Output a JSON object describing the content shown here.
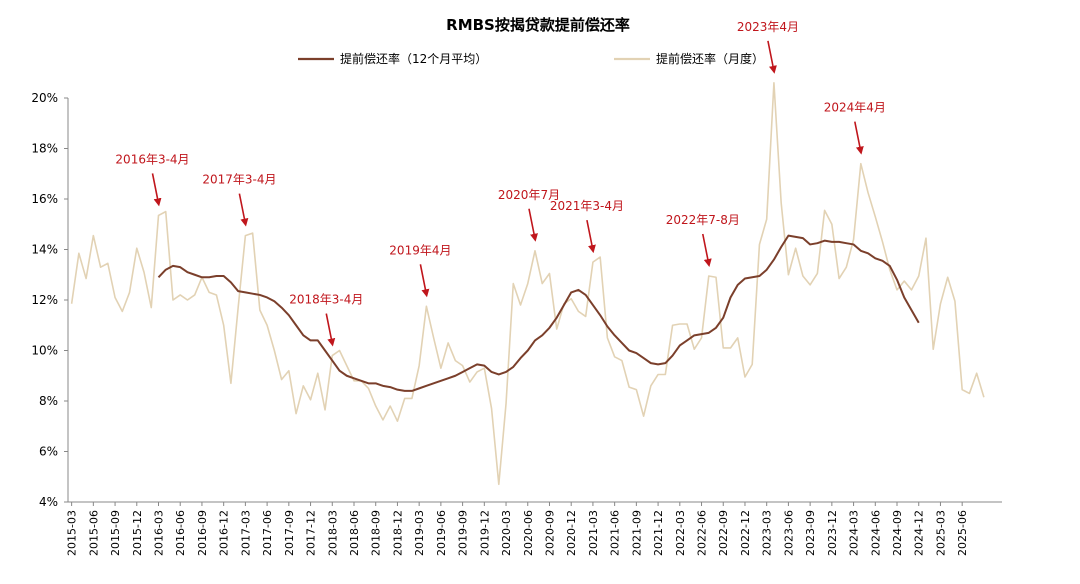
{
  "chart_data": {
    "type": "line",
    "title": "RMBS按揭贷款提前偿还率",
    "xlabel": "",
    "ylabel": "",
    "ylim": [
      4,
      20
    ],
    "yticks": [
      4,
      6,
      8,
      10,
      12,
      14,
      16,
      18,
      20
    ],
    "ytick_labels": [
      "4%",
      "6%",
      "8%",
      "10%",
      "12%",
      "14%",
      "16%",
      "18%",
      "20%"
    ],
    "legend_position": "top",
    "grid": false,
    "x_start": "2015-03",
    "x_months": 129,
    "xtick_labels": [
      "2015-03",
      "2015-06",
      "2015-09",
      "2015-12",
      "2016-03",
      "2016-06",
      "2016-09",
      "2016-12",
      "2017-03",
      "2017-06",
      "2017-09",
      "2017-12",
      "2018-03",
      "2018-06",
      "2018-09",
      "2018-12",
      "2019-03",
      "2019-06",
      "2019-09",
      "2019-12",
      "2020-03",
      "2020-06",
      "2020-09",
      "2020-12",
      "2021-03",
      "2021-06",
      "2021-09",
      "2021-12",
      "2022-03",
      "2022-06",
      "2022-09",
      "2022-12",
      "2023-03",
      "2023-06",
      "2023-09",
      "2023-12",
      "2024-03",
      "2024-06",
      "2024-09",
      "2024-12",
      "2025-03",
      "2025-06"
    ],
    "series": [
      {
        "name": "提前偿还率（12个月平均）",
        "color": "#7b3f2b",
        "start_month_index": 12,
        "values": [
          12.9,
          13.2,
          13.35,
          13.3,
          13.1,
          13.0,
          12.9,
          12.9,
          12.95,
          12.95,
          12.7,
          12.35,
          12.3,
          12.25,
          12.2,
          12.1,
          11.95,
          11.7,
          11.4,
          11.0,
          10.6,
          10.4,
          10.4,
          10.0,
          9.6,
          9.2,
          9.0,
          8.9,
          8.8,
          8.7,
          8.7,
          8.6,
          8.55,
          8.45,
          8.4,
          8.4,
          8.5,
          8.6,
          8.7,
          8.8,
          8.9,
          9.0,
          9.15,
          9.3,
          9.45,
          9.4,
          9.15,
          9.05,
          9.15,
          9.35,
          9.7,
          10.0,
          10.4,
          10.6,
          10.9,
          11.3,
          11.8,
          12.3,
          12.4,
          12.2,
          11.8,
          11.4,
          10.95,
          10.6,
          10.3,
          10.0,
          9.9,
          9.7,
          9.5,
          9.45,
          9.5,
          9.8,
          10.2,
          10.4,
          10.6,
          10.65,
          10.7,
          10.9,
          11.3,
          12.1,
          12.6,
          12.85,
          12.9,
          12.95,
          13.2,
          13.6,
          14.1,
          14.55,
          14.5,
          14.45,
          14.2,
          14.25,
          14.35,
          14.3,
          14.3,
          14.25,
          14.2,
          13.95,
          13.85,
          13.65,
          13.55,
          13.35,
          12.8,
          12.1,
          11.6,
          11.1
        ]
      },
      {
        "name": "提前偿还率（月度）",
        "color": "#e2d2b4",
        "start_month_index": 0,
        "values": [
          11.85,
          13.85,
          12.85,
          14.55,
          13.3,
          13.45,
          12.1,
          11.55,
          12.3,
          14.05,
          13.1,
          11.7,
          15.35,
          15.5,
          12.0,
          12.2,
          12.0,
          12.2,
          12.9,
          12.3,
          12.2,
          11.0,
          8.7,
          11.7,
          14.55,
          14.65,
          11.6,
          11.0,
          10.0,
          8.85,
          9.2,
          7.5,
          8.6,
          8.05,
          9.1,
          7.65,
          9.8,
          10.0,
          9.4,
          8.8,
          8.8,
          8.5,
          7.8,
          7.25,
          7.8,
          7.2,
          8.1,
          8.1,
          9.4,
          11.75,
          10.5,
          9.3,
          10.3,
          9.6,
          9.4,
          8.75,
          9.15,
          9.3,
          7.7,
          4.7,
          7.9,
          12.65,
          11.8,
          12.65,
          13.95,
          12.65,
          13.05,
          10.85,
          11.85,
          12.05,
          11.55,
          11.35,
          13.5,
          13.7,
          10.5,
          9.75,
          9.6,
          8.55,
          8.45,
          7.4,
          8.6,
          9.05,
          9.05,
          11.0,
          11.05,
          11.05,
          10.05,
          10.5,
          12.95,
          12.9,
          10.1,
          10.1,
          10.5,
          8.95,
          9.45,
          14.2,
          15.2,
          20.6,
          15.85,
          13.0,
          14.05,
          12.95,
          12.6,
          13.05,
          15.55,
          15.0,
          12.85,
          13.3,
          14.4,
          17.4,
          16.25,
          15.3,
          14.3,
          13.2,
          12.4,
          12.75,
          12.4,
          12.95,
          14.45,
          10.05,
          11.85,
          12.9,
          11.95,
          8.45,
          8.3,
          9.1,
          8.15
        ]
      }
    ],
    "annotations": [
      {
        "label": "2016年3-4月",
        "month_index": 12
      },
      {
        "label": "2017年3-4月",
        "month_index": 24
      },
      {
        "label": "2018年3-4月",
        "month_index": 36
      },
      {
        "label": "2019年4月",
        "month_index": 49
      },
      {
        "label": "2020年7月",
        "month_index": 64
      },
      {
        "label": "2021年3-4月",
        "month_index": 72
      },
      {
        "label": "2022年7-8月",
        "month_index": 88
      },
      {
        "label": "2023年4月",
        "month_index": 97
      },
      {
        "label": "2024年4月",
        "month_index": 109
      }
    ],
    "annotation_color": "#c0161c"
  }
}
